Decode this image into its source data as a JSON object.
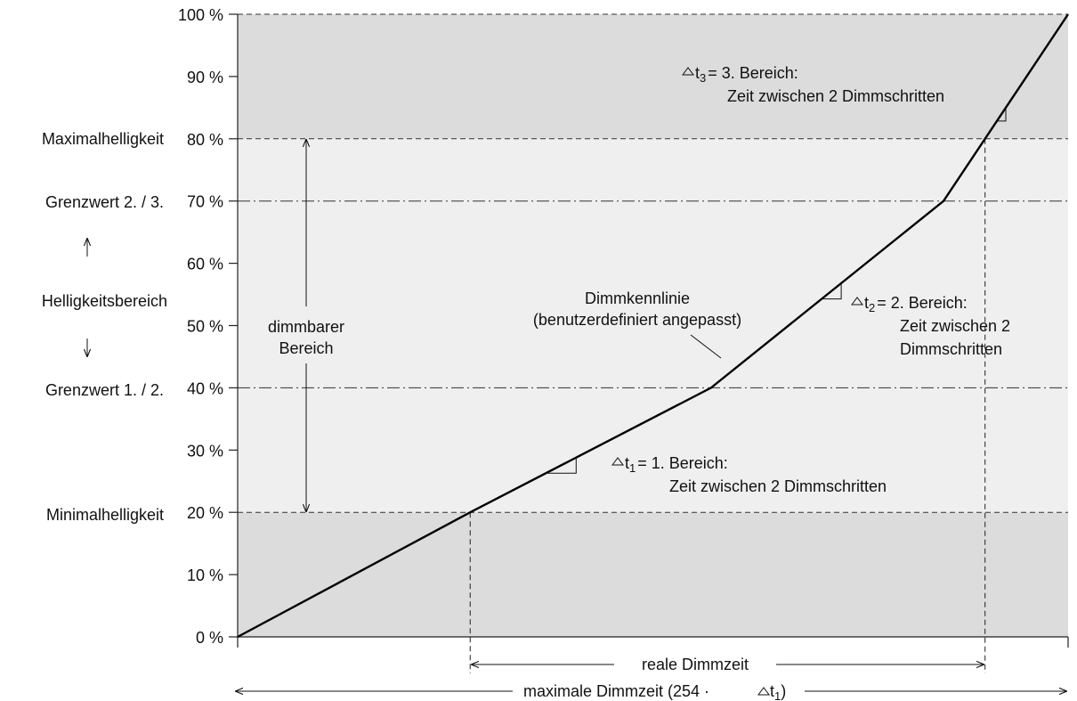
{
  "chart_data": {
    "type": "line",
    "x_range": [
      0,
      1
    ],
    "y_range": [
      0,
      100
    ],
    "y_ticks": [
      {
        "value": 0,
        "label": "0 %"
      },
      {
        "value": 10,
        "label": "10 %"
      },
      {
        "value": 20,
        "label": "20 %"
      },
      {
        "value": 30,
        "label": "30 %"
      },
      {
        "value": 40,
        "label": "40 %"
      },
      {
        "value": 50,
        "label": "50 %"
      },
      {
        "value": 60,
        "label": "60 %"
      },
      {
        "value": 70,
        "label": "70 %"
      },
      {
        "value": 80,
        "label": "80 %"
      },
      {
        "value": 90,
        "label": "90 %"
      },
      {
        "value": 100,
        "label": "100 %"
      }
    ],
    "series": [
      {
        "x": [
          0,
          0.28,
          0.57,
          0.85,
          1.0
        ],
        "y": [
          0,
          20,
          40,
          70,
          100
        ]
      }
    ],
    "bands": [
      {
        "from": 0,
        "to": 20,
        "color": "#dcdcdc"
      },
      {
        "from": 20,
        "to": 80,
        "color": "#efefef"
      },
      {
        "from": 80,
        "to": 100,
        "color": "#dcdcdc"
      }
    ],
    "lines": {
      "minimum": {
        "value": 20,
        "style": "dashed",
        "label": "Minimalhelligkeit"
      },
      "threshold_1_2": {
        "value": 40,
        "style": "dashdot",
        "label": "Grenzwert 1. / 2."
      },
      "threshold_2_3": {
        "value": 70,
        "style": "dashdot",
        "label": "Grenzwert 2. / 3."
      },
      "maximum": {
        "value": 80,
        "style": "dashed",
        "label": "Maximalhelligkeit"
      }
    },
    "brightness_range_label": "Helligkeitsbereich",
    "dimmable_range": {
      "from": 20,
      "to": 80,
      "label_line1": "dimmbarer",
      "label_line2": "Bereich"
    },
    "curve_label": {
      "line1": "Dimmkennlinie",
      "line2": "(benutzerdefiniert angepasst)"
    },
    "annotations": {
      "t1": {
        "symbol": "t",
        "sub": "1",
        "text": "= 1. Bereich:",
        "text2": "Zeit zwischen 2 Dimmschritten"
      },
      "t2": {
        "symbol": "t",
        "sub": "2",
        "text": "= 2. Bereich:",
        "text2": "Zeit zwischen 2",
        "text3": "Dimmschritten"
      },
      "t3": {
        "symbol": "t",
        "sub": "3",
        "text": "= 3. Bereich:",
        "text2": "Zeit zwischen 2 Dimmschritten"
      }
    },
    "real_dimming_time": {
      "label": "reale Dimmzeit"
    },
    "max_dimming_time": {
      "prefix": "maximale Dimmzeit (254 ",
      "dot": "·",
      "sub": "1",
      "suffix": ")"
    }
  }
}
